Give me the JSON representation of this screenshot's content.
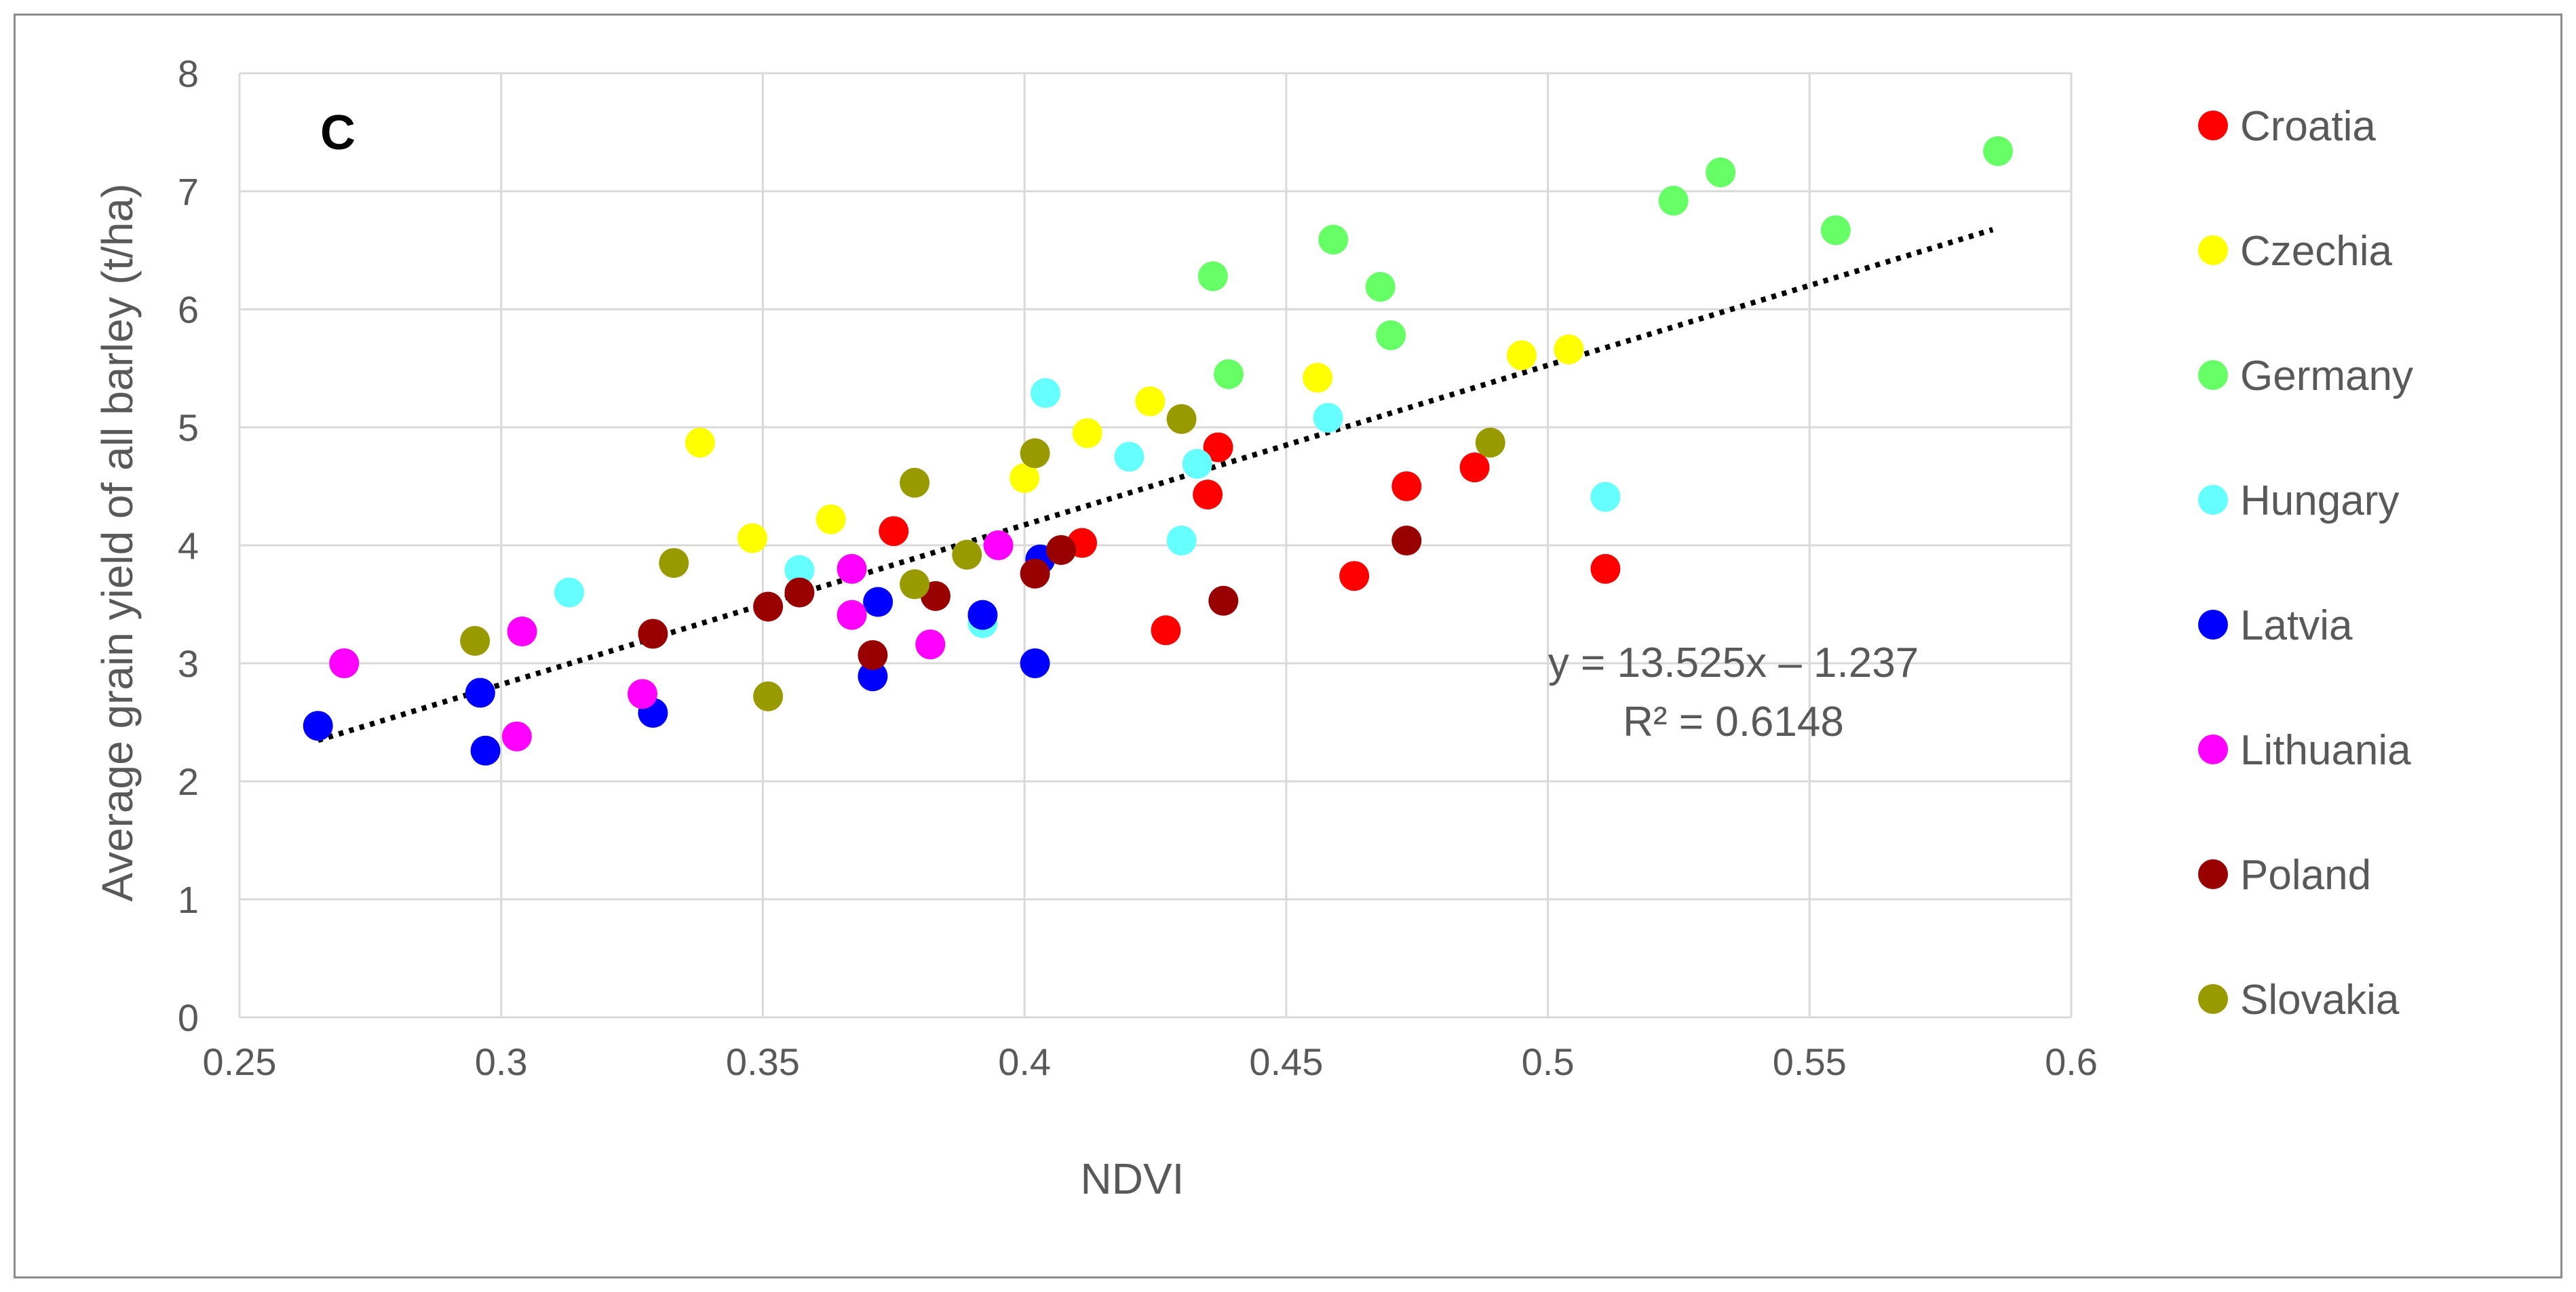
{
  "chart_data": {
    "type": "scatter",
    "panel_label": "C",
    "xlabel": "NDVI",
    "ylabel": "Average grain yield of all barley (t/ha)",
    "xlim": [
      0.25,
      0.6
    ],
    "ylim": [
      0,
      8
    ],
    "x_ticks": [
      "0.25",
      "0.3",
      "0.35",
      "0.4",
      "0.45",
      "0.5",
      "0.55",
      "0.6"
    ],
    "y_ticks": [
      "0",
      "1",
      "2",
      "3",
      "4",
      "5",
      "6",
      "7",
      "8"
    ],
    "grid": true,
    "legend_position": "right",
    "trendline": {
      "style": "dotted",
      "color": "#000000",
      "slope": 13.525,
      "intercept": -1.237,
      "x_range": [
        0.265,
        0.585
      ],
      "equation": "y = 13.525x – 1.237",
      "r2": "R² = 0.6148"
    },
    "series": [
      {
        "name": "Croatia",
        "color": "#ff0000",
        "points": [
          [
            0.375,
            4.12
          ],
          [
            0.411,
            4.02
          ],
          [
            0.427,
            3.28
          ],
          [
            0.435,
            4.43
          ],
          [
            0.437,
            4.83
          ],
          [
            0.463,
            3.74
          ],
          [
            0.473,
            4.5
          ],
          [
            0.486,
            4.66
          ],
          [
            0.511,
            3.8
          ]
        ]
      },
      {
        "name": "Czechia",
        "color": "#ffff00",
        "points": [
          [
            0.338,
            4.87
          ],
          [
            0.348,
            4.06
          ],
          [
            0.363,
            4.22
          ],
          [
            0.4,
            4.57
          ],
          [
            0.412,
            4.95
          ],
          [
            0.424,
            5.22
          ],
          [
            0.456,
            5.42
          ],
          [
            0.495,
            5.61
          ],
          [
            0.504,
            5.66
          ]
        ]
      },
      {
        "name": "Germany",
        "color": "#66ff66",
        "points": [
          [
            0.436,
            6.28
          ],
          [
            0.439,
            5.45
          ],
          [
            0.459,
            6.59
          ],
          [
            0.468,
            6.19
          ],
          [
            0.47,
            5.78
          ],
          [
            0.524,
            6.92
          ],
          [
            0.533,
            7.16
          ],
          [
            0.555,
            6.67
          ],
          [
            0.586,
            7.34
          ]
        ]
      },
      {
        "name": "Hungary",
        "color": "#66ffff",
        "points": [
          [
            0.313,
            3.6
          ],
          [
            0.357,
            3.79
          ],
          [
            0.392,
            3.34
          ],
          [
            0.404,
            5.29
          ],
          [
            0.42,
            4.75
          ],
          [
            0.43,
            4.04
          ],
          [
            0.433,
            4.69
          ],
          [
            0.458,
            5.08
          ],
          [
            0.511,
            4.41
          ]
        ]
      },
      {
        "name": "Latvia",
        "color": "#0000ff",
        "points": [
          [
            0.265,
            2.47
          ],
          [
            0.296,
            2.75
          ],
          [
            0.297,
            2.26
          ],
          [
            0.329,
            2.58
          ],
          [
            0.371,
            2.89
          ],
          [
            0.372,
            3.52
          ],
          [
            0.392,
            3.41
          ],
          [
            0.402,
            3.0
          ],
          [
            0.403,
            3.88
          ]
        ]
      },
      {
        "name": "Lithuania",
        "color": "#ff00ff",
        "points": [
          [
            0.27,
            3.0
          ],
          [
            0.303,
            2.38
          ],
          [
            0.304,
            3.27
          ],
          [
            0.327,
            2.74
          ],
          [
            0.367,
            3.8
          ],
          [
            0.367,
            3.41
          ],
          [
            0.382,
            3.16
          ],
          [
            0.395,
            4.0
          ]
        ]
      },
      {
        "name": "Poland",
        "color": "#990000",
        "points": [
          [
            0.329,
            3.25
          ],
          [
            0.351,
            3.48
          ],
          [
            0.357,
            3.6
          ],
          [
            0.371,
            3.07
          ],
          [
            0.383,
            3.57
          ],
          [
            0.402,
            3.76
          ],
          [
            0.407,
            3.96
          ],
          [
            0.438,
            3.53
          ],
          [
            0.473,
            4.04
          ]
        ]
      },
      {
        "name": "Slovakia",
        "color": "#999900",
        "points": [
          [
            0.295,
            3.19
          ],
          [
            0.333,
            3.85
          ],
          [
            0.351,
            2.72
          ],
          [
            0.379,
            4.53
          ],
          [
            0.379,
            3.67
          ],
          [
            0.389,
            3.92
          ],
          [
            0.402,
            4.78
          ],
          [
            0.43,
            5.07
          ],
          [
            0.489,
            4.87
          ]
        ]
      }
    ]
  }
}
